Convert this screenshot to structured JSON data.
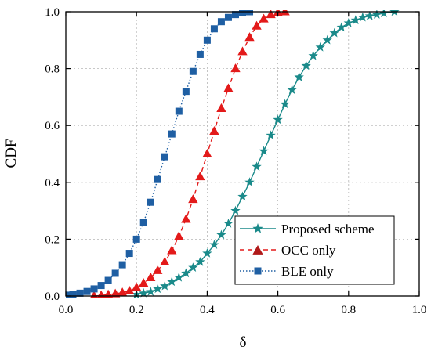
{
  "chart_data": {
    "type": "line",
    "title": "",
    "xlabel": "δ",
    "ylabel": "CDF",
    "xlim": [
      0.0,
      1.0
    ],
    "ylim": [
      0.0,
      1.0
    ],
    "xticks": [
      "0.0",
      "0.2",
      "0.4",
      "0.6",
      "0.8",
      "1.0"
    ],
    "yticks": [
      "0.0",
      "0.2",
      "0.4",
      "0.6",
      "0.8",
      "1.0"
    ],
    "grid": true,
    "legend_position": "bottom-right",
    "series": [
      {
        "name": "Proposed scheme",
        "color": "#1a8a8a",
        "marker": "star",
        "line": "solid",
        "x": [
          0.2,
          0.22,
          0.24,
          0.26,
          0.28,
          0.3,
          0.32,
          0.34,
          0.36,
          0.38,
          0.4,
          0.42,
          0.44,
          0.46,
          0.48,
          0.5,
          0.52,
          0.54,
          0.56,
          0.58,
          0.6,
          0.62,
          0.64,
          0.66,
          0.68,
          0.7,
          0.72,
          0.74,
          0.76,
          0.78,
          0.8,
          0.82,
          0.84,
          0.86,
          0.88,
          0.9,
          0.93
        ],
        "y": [
          0.005,
          0.01,
          0.015,
          0.025,
          0.035,
          0.05,
          0.065,
          0.08,
          0.1,
          0.12,
          0.15,
          0.18,
          0.215,
          0.255,
          0.3,
          0.35,
          0.4,
          0.455,
          0.51,
          0.565,
          0.62,
          0.675,
          0.725,
          0.77,
          0.81,
          0.845,
          0.875,
          0.9,
          0.925,
          0.945,
          0.96,
          0.97,
          0.98,
          0.985,
          0.99,
          0.995,
          1.0
        ]
      },
      {
        "name": "OCC only",
        "color": "#e31a1a",
        "marker": "triangle",
        "line": "dashed",
        "x": [
          0.08,
          0.1,
          0.12,
          0.14,
          0.16,
          0.18,
          0.2,
          0.22,
          0.24,
          0.26,
          0.28,
          0.3,
          0.32,
          0.34,
          0.36,
          0.38,
          0.4,
          0.42,
          0.44,
          0.46,
          0.48,
          0.5,
          0.52,
          0.54,
          0.56,
          0.58,
          0.6,
          0.62
        ],
        "y": [
          0.0,
          0.002,
          0.005,
          0.008,
          0.012,
          0.018,
          0.03,
          0.045,
          0.065,
          0.09,
          0.12,
          0.16,
          0.21,
          0.27,
          0.34,
          0.42,
          0.5,
          0.58,
          0.66,
          0.73,
          0.8,
          0.86,
          0.91,
          0.95,
          0.975,
          0.99,
          0.997,
          1.0
        ]
      },
      {
        "name": "BLE only",
        "color": "#1f5fa3",
        "marker": "square",
        "line": "dotted",
        "x": [
          0.0,
          0.02,
          0.04,
          0.06,
          0.08,
          0.1,
          0.12,
          0.14,
          0.16,
          0.18,
          0.2,
          0.22,
          0.24,
          0.26,
          0.28,
          0.3,
          0.32,
          0.34,
          0.36,
          0.38,
          0.4,
          0.42,
          0.44,
          0.46,
          0.48,
          0.5,
          0.52
        ],
        "y": [
          0.003,
          0.006,
          0.01,
          0.016,
          0.025,
          0.037,
          0.055,
          0.08,
          0.11,
          0.15,
          0.2,
          0.26,
          0.33,
          0.41,
          0.49,
          0.57,
          0.65,
          0.72,
          0.79,
          0.85,
          0.9,
          0.94,
          0.965,
          0.98,
          0.99,
          0.997,
          1.0
        ]
      }
    ]
  }
}
